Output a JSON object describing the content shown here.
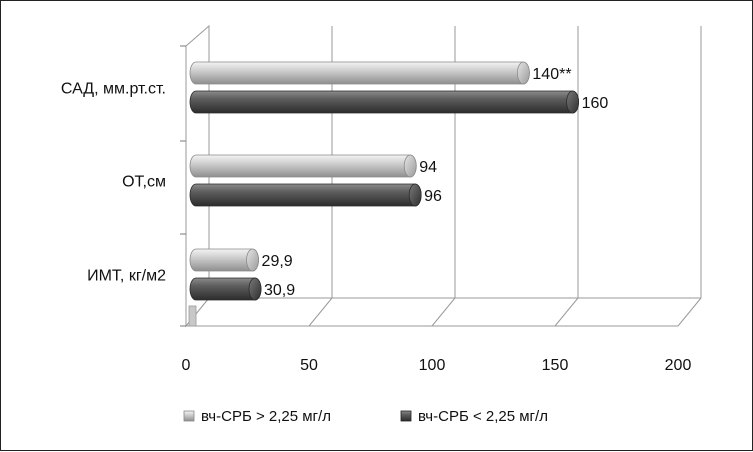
{
  "chart_data": {
    "type": "bar",
    "orientation": "horizontal",
    "three_d": true,
    "categories": [
      "САД, мм.рт.ст.",
      "ОТ,см",
      "ИМТ, кг/м2"
    ],
    "series": [
      {
        "name": "вч-СРБ > 2,25 мг/л",
        "values": [
          140,
          94,
          29.9
        ],
        "labels": [
          "140**",
          "94",
          "29,9"
        ],
        "color": "#b4b4b4"
      },
      {
        "name": "вч-СРБ < 2,25 мг/л",
        "values": [
          160,
          96,
          30.9
        ],
        "labels": [
          "160",
          "96",
          "30,9"
        ],
        "color": "#555555"
      }
    ],
    "xlim": [
      0,
      200
    ],
    "xticks": [
      "0",
      "50",
      "100",
      "150",
      "200"
    ],
    "grid": true,
    "legend_position": "bottom"
  }
}
